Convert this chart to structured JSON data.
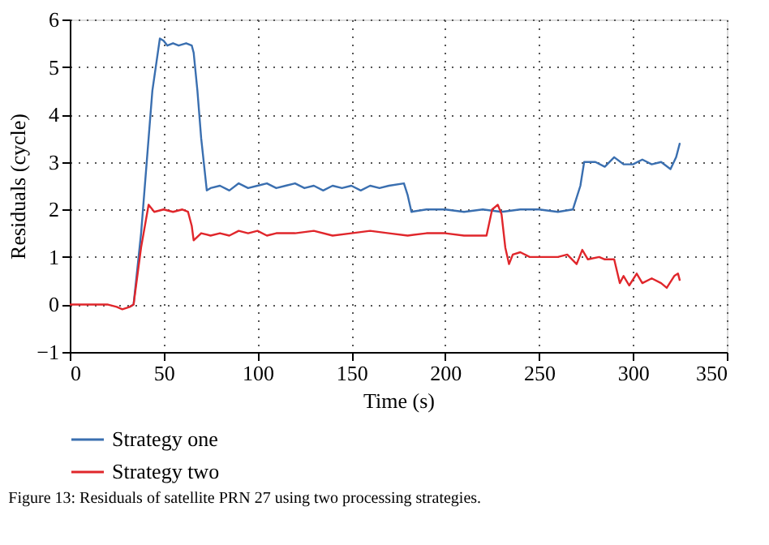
{
  "chart_data": {
    "type": "line",
    "xlabel": "Time (s)",
    "ylabel": "Residuals (cycle)",
    "xlim": [
      0,
      350
    ],
    "xticks": [
      0,
      50,
      100,
      150,
      200,
      250,
      300,
      350
    ],
    "ylim": [
      -1,
      6
    ],
    "yticks": [
      -1,
      0,
      1,
      2,
      3,
      4,
      5,
      6
    ],
    "grid": true,
    "legend": "bottom",
    "line_style": "solid",
    "annotations": [
      "Figure 13: Residuals of satellite PRN 27 using two processing strategies."
    ],
    "series": [
      {
        "name": "Strategy one",
        "color": "#3a6fb0",
        "x": [
          32,
          34,
          38,
          44,
          48,
          50,
          52,
          55,
          58,
          62,
          65,
          66,
          68,
          70,
          73,
          75,
          80,
          85,
          90,
          95,
          100,
          105,
          110,
          115,
          120,
          125,
          130,
          135,
          140,
          145,
          150,
          155,
          160,
          165,
          170,
          178,
          180,
          182,
          190,
          200,
          210,
          220,
          230,
          240,
          250,
          260,
          268,
          272,
          274,
          280,
          285,
          290,
          295,
          300,
          305,
          310,
          315,
          320,
          323,
          325
        ],
        "values": [
          -0.05,
          0,
          1.5,
          4.5,
          5.6,
          5.55,
          5.45,
          5.5,
          5.45,
          5.5,
          5.45,
          5.3,
          4.5,
          3.5,
          2.4,
          2.45,
          2.5,
          2.4,
          2.55,
          2.45,
          2.5,
          2.55,
          2.45,
          2.5,
          2.55,
          2.45,
          2.5,
          2.4,
          2.5,
          2.45,
          2.5,
          2.4,
          2.5,
          2.45,
          2.5,
          2.55,
          2.3,
          1.95,
          2.0,
          2.0,
          1.95,
          2.0,
          1.95,
          2.0,
          2.0,
          1.95,
          2.0,
          2.5,
          3.0,
          3.0,
          2.9,
          3.1,
          2.95,
          2.95,
          3.05,
          2.95,
          3.0,
          2.85,
          3.1,
          3.4
        ]
      },
      {
        "name": "Strategy two",
        "color": "#e0262b",
        "x": [
          0,
          20,
          25,
          28,
          32,
          34,
          38,
          42,
          45,
          50,
          55,
          60,
          63,
          65,
          66,
          70,
          75,
          80,
          85,
          90,
          95,
          100,
          105,
          110,
          120,
          130,
          140,
          150,
          160,
          170,
          180,
          190,
          200,
          210,
          222,
          225,
          228,
          230,
          232,
          234,
          236,
          240,
          245,
          250,
          260,
          265,
          270,
          273,
          276,
          282,
          285,
          290,
          293,
          295,
          298,
          302,
          305,
          310,
          315,
          318,
          322,
          324,
          325
        ],
        "values": [
          0,
          0,
          -0.05,
          -0.1,
          -0.05,
          0,
          1.2,
          2.1,
          1.95,
          2.0,
          1.95,
          2.0,
          1.95,
          1.65,
          1.35,
          1.5,
          1.45,
          1.5,
          1.45,
          1.55,
          1.5,
          1.55,
          1.45,
          1.5,
          1.5,
          1.55,
          1.45,
          1.5,
          1.55,
          1.5,
          1.45,
          1.5,
          1.5,
          1.45,
          1.45,
          2.0,
          2.1,
          1.9,
          1.2,
          0.85,
          1.05,
          1.1,
          1.0,
          1.0,
          1.0,
          1.05,
          0.85,
          1.15,
          0.95,
          1.0,
          0.95,
          0.95,
          0.45,
          0.6,
          0.4,
          0.65,
          0.45,
          0.55,
          0.45,
          0.35,
          0.6,
          0.65,
          0.5
        ]
      }
    ]
  }
}
